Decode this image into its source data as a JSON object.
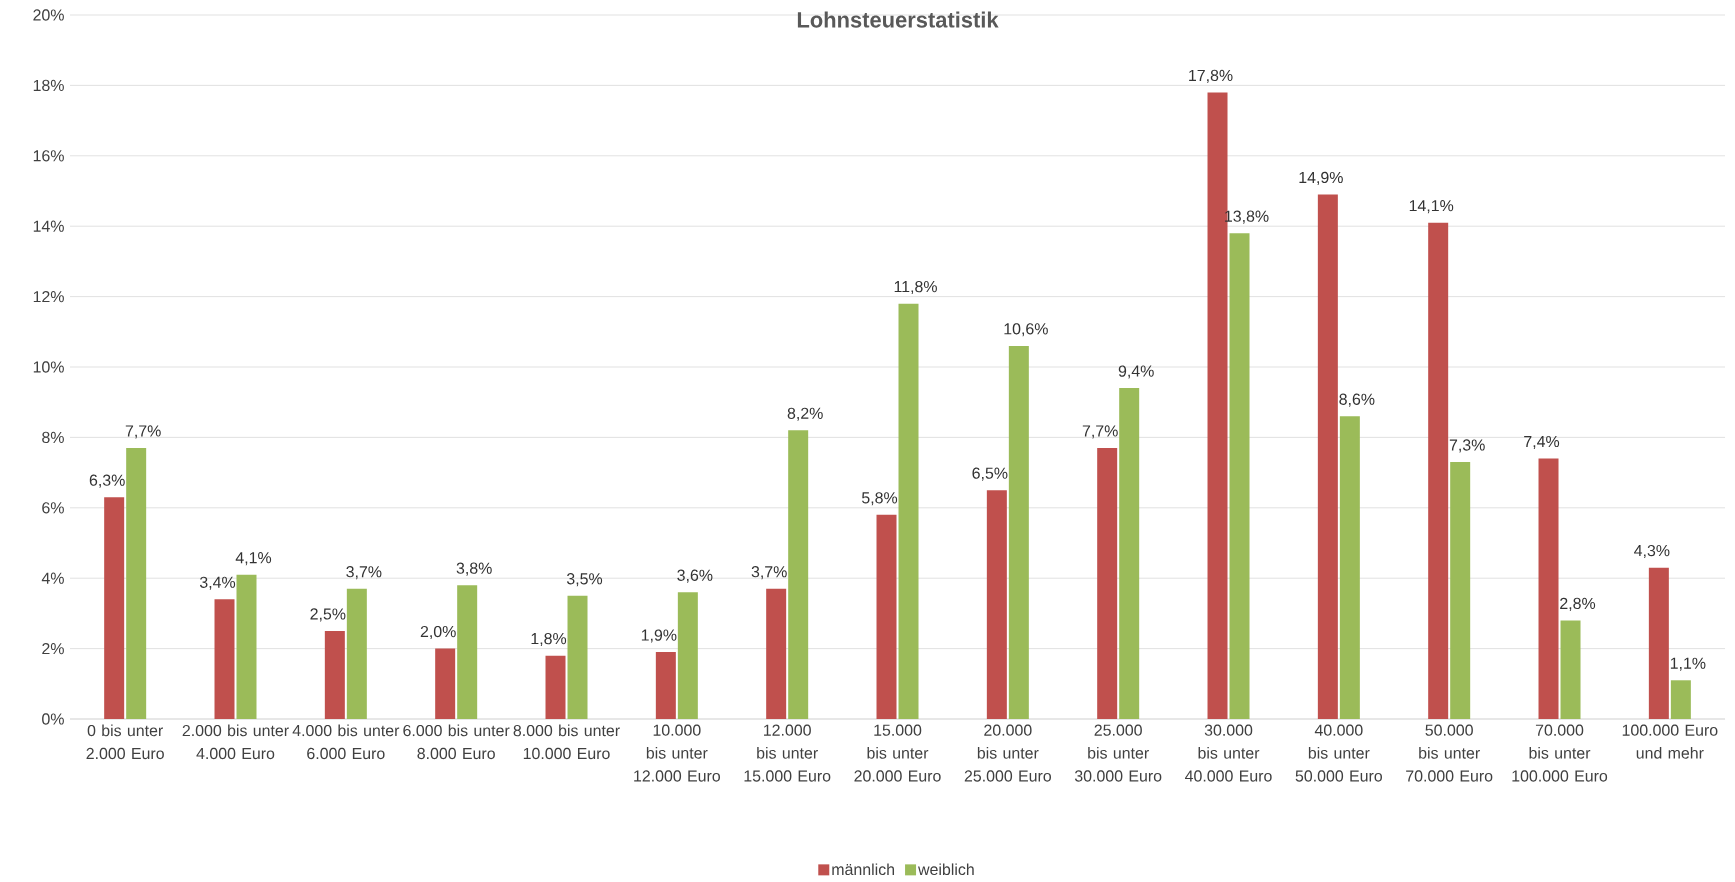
{
  "chart_data": {
    "type": "bar",
    "title": "Lohnsteuerstatistik",
    "categories": [
      "0 bis unter 2.000 Euro",
      "2.000 bis unter 4.000 Euro",
      "4.000 bis unter 6.000 Euro",
      "6.000 bis unter 8.000 Euro",
      "8.000 bis unter 10.000 Euro",
      "10.000 bis unter 12.000 Euro",
      "12.000 bis unter 15.000 Euro",
      "15.000 bis unter 20.000 Euro",
      "20.000 bis unter 25.000 Euro",
      "25.000 bis unter 30.000 Euro",
      "30.000 bis unter 40.000 Euro",
      "40.000 bis unter 50.000 Euro",
      "50.000 bis unter 70.000 Euro",
      "70.000 bis unter 100.000 Euro",
      "100.000 Euro und mehr"
    ],
    "series": [
      {
        "name": "männlich",
        "color": "#c0504d",
        "values": [
          6.3,
          3.4,
          2.5,
          2.0,
          1.8,
          1.9,
          3.7,
          5.8,
          6.5,
          7.7,
          17.8,
          14.9,
          14.1,
          7.4,
          4.3
        ],
        "value_labels": [
          "6,3%",
          "3,4%",
          "2,5%",
          "2,0%",
          "1,8%",
          "1,9%",
          "3,7%",
          "5,8%",
          "6,5%",
          "7,7%",
          "17,8%",
          "14,9%",
          "14,1%",
          "7,4%",
          "4,3%"
        ]
      },
      {
        "name": "weiblich",
        "color": "#9bbb59",
        "values": [
          7.7,
          4.1,
          3.7,
          3.8,
          3.5,
          3.6,
          8.2,
          11.8,
          10.6,
          9.4,
          13.8,
          8.6,
          7.3,
          2.8,
          1.1
        ],
        "value_labels": [
          "7,7%",
          "4,1%",
          "3,7%",
          "3,8%",
          "3,5%",
          "3,6%",
          "8,2%",
          "11,8%",
          "10,6%",
          "9,4%",
          "13,8%",
          "8,6%",
          "7,3%",
          "2,8%",
          "1,1%"
        ]
      }
    ],
    "ylim": [
      0,
      20
    ],
    "yticks": [
      {
        "value": 0,
        "label": "0%"
      },
      {
        "value": 2,
        "label": "2%"
      },
      {
        "value": 4,
        "label": "4%"
      },
      {
        "value": 6,
        "label": "6%"
      },
      {
        "value": 8,
        "label": "8%"
      },
      {
        "value": 10,
        "label": "10%"
      },
      {
        "value": 12,
        "label": "12%"
      },
      {
        "value": 14,
        "label": "14%"
      },
      {
        "value": 16,
        "label": "16%"
      },
      {
        "value": 18,
        "label": "18%"
      },
      {
        "value": 20,
        "label": "20%"
      }
    ],
    "grid": "y",
    "legend": "bottom"
  }
}
